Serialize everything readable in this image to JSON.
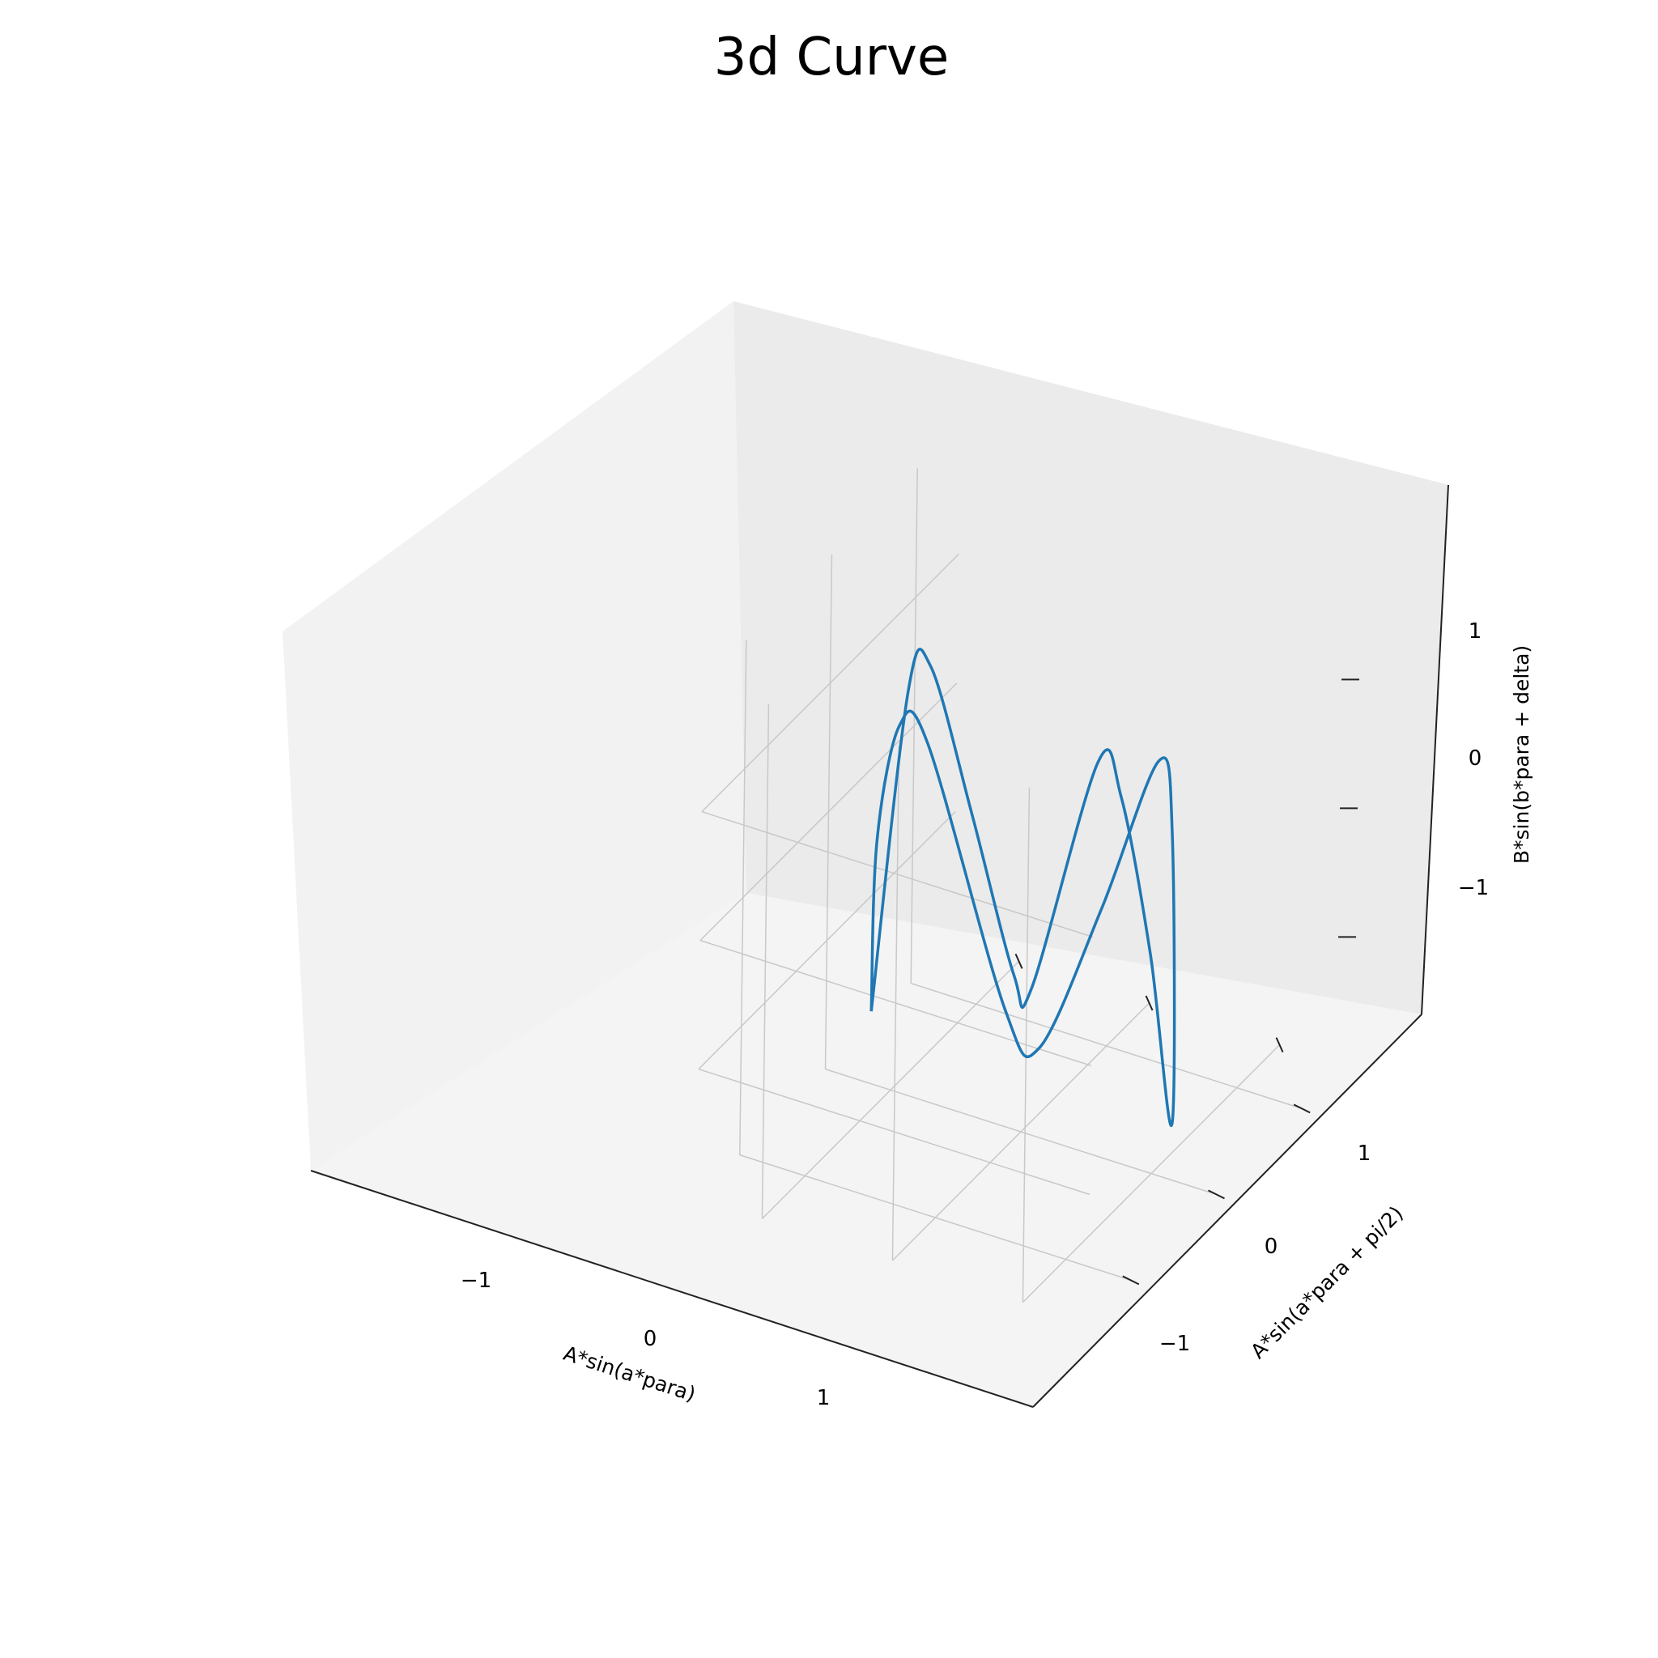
{
  "chart_data": {
    "type": "line",
    "title": "3d Curve",
    "xlabel": "A*sin(a*para)",
    "ylabel": "A*sin(a*para + pi/2)",
    "zlabel": "B*sin(b*para + delta)",
    "xticks": [
      "−1",
      "0",
      "1"
    ],
    "yticks": [
      "−1",
      "0",
      "1"
    ],
    "zticks": [
      "−1",
      "0",
      "1"
    ],
    "xlim": [
      -1.5,
      1.5
    ],
    "ylim": [
      -1.5,
      1.5
    ],
    "zlim": [
      -2.0,
      2.0
    ],
    "grid": true,
    "series": [
      {
        "color": "#1f77b4",
        "points": [
          {
            "x": -1.2,
            "y": -0.07,
            "z": -1.5
          },
          {
            "x": -1.0,
            "y": -0.15,
            "z": 1.0
          },
          {
            "x": -0.85,
            "y": -0.18,
            "z": 1.22
          },
          {
            "x": -0.5,
            "y": -0.15,
            "z": 0.2
          },
          {
            "x": -0.1,
            "y": -0.05,
            "z": -0.85
          },
          {
            "x": 0.1,
            "y": 0.05,
            "z": -0.82
          },
          {
            "x": 0.65,
            "y": 0.15,
            "z": 1.18
          },
          {
            "x": 0.85,
            "y": 0.18,
            "z": 1.0
          },
          {
            "x": 1.05,
            "y": 0.12,
            "z": -0.2
          },
          {
            "x": 1.2,
            "y": 0.07,
            "z": -1.5
          },
          {
            "x": 1.05,
            "y": -0.12,
            "z": 0.6
          },
          {
            "x": 0.9,
            "y": -0.18,
            "z": 1.05
          },
          {
            "x": 0.5,
            "y": -0.15,
            "z": -0.2
          },
          {
            "x": 0.1,
            "y": -0.05,
            "z": -1.35
          },
          {
            "x": -0.1,
            "y": 0.05,
            "z": -1.05
          },
          {
            "x": -0.65,
            "y": 0.15,
            "z": 0.9
          },
          {
            "x": -0.85,
            "y": 0.18,
            "z": 1.0
          },
          {
            "x": -1.05,
            "y": 0.12,
            "z": 0.0
          },
          {
            "x": -1.2,
            "y": -0.07,
            "z": -1.5
          }
        ]
      }
    ]
  }
}
